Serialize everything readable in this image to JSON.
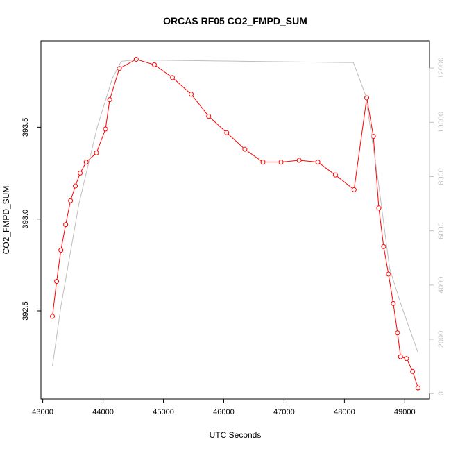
{
  "chart_data": {
    "type": "line",
    "title": "ORCAS RF05 CO2_FMPD_SUM",
    "xlabel": "UTC Seconds",
    "ylabel": "CO2_FMPD_SUM",
    "xlim": [
      42970,
      49410
    ],
    "ylim": [
      392.02,
      393.97
    ],
    "y2lim": [
      -200,
      13000
    ],
    "x_ticks": [
      43000,
      44000,
      45000,
      46000,
      47000,
      48000,
      49000
    ],
    "y_ticks": [
      392.5,
      393.0,
      393.5
    ],
    "y_tick_labels": [
      "392.5",
      "393.0",
      "393.5"
    ],
    "y2_ticks": [
      0,
      2000,
      4000,
      6000,
      8000,
      10000,
      12000
    ],
    "grid": false,
    "series": [
      {
        "name": "",
        "axis": "left",
        "color": "#ff0000",
        "marker": "open-circle",
        "x": [
          43160,
          43230,
          43300,
          43380,
          43460,
          43540,
          43620,
          43720,
          43890,
          44040,
          44110,
          44270,
          44550,
          44850,
          45150,
          45460,
          45750,
          46050,
          46350,
          46650,
          46950,
          47250,
          47560,
          47850,
          48160,
          48370,
          48480,
          48570,
          48650,
          48730,
          48810,
          48880,
          48930,
          49030,
          49130,
          49220
        ],
        "y": [
          392.47,
          392.66,
          392.83,
          392.97,
          393.1,
          393.18,
          393.25,
          393.31,
          393.36,
          393.49,
          393.65,
          393.82,
          393.87,
          393.84,
          393.77,
          393.68,
          393.56,
          393.47,
          393.38,
          393.31,
          393.31,
          393.32,
          393.31,
          393.24,
          393.16,
          393.66,
          393.45,
          393.06,
          392.85,
          392.7,
          392.54,
          392.38,
          392.25,
          392.24,
          392.17,
          392.08
        ]
      },
      {
        "name": "",
        "axis": "right",
        "color": "#bebebe",
        "marker": "none",
        "x": [
          43160,
          43300,
          43600,
          43900,
          44150,
          44300,
          44550,
          48150,
          48350,
          48550,
          48750,
          48950,
          49220
        ],
        "y": [
          1000,
          3200,
          7000,
          9800,
          11600,
          12250,
          12300,
          12200,
          11000,
          8000,
          4600,
          3200,
          1500
        ]
      }
    ]
  }
}
